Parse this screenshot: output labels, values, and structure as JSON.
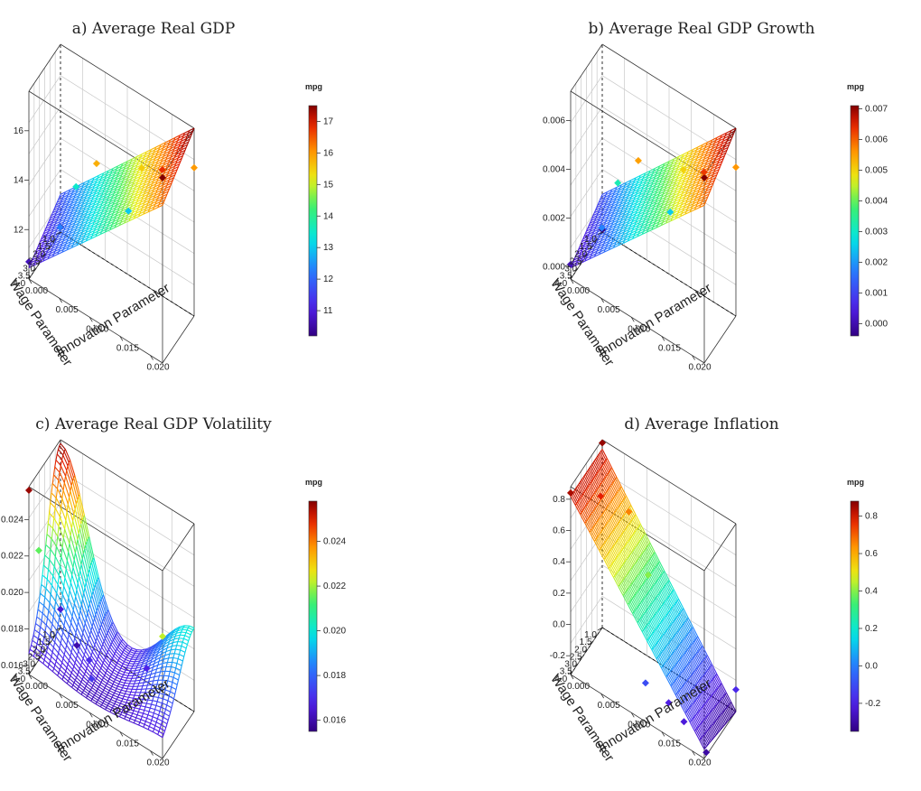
{
  "panels": {
    "a": {
      "title": "a) Average Real GDP"
    },
    "b": {
      "title": "b) Average Real GDP Growth"
    },
    "c": {
      "title": "c) Average Real GDP Volatility"
    },
    "d": {
      "title": "d) Average Inflation"
    }
  },
  "chart_data": [
    {
      "type": "surface",
      "title": "a) Average Real GDP",
      "xlabel": "Innovation Parameter",
      "ylabel": "Wage Parameter",
      "x_ticks": [
        "0.000",
        "0.005",
        "0.010",
        "0.015",
        "0.020"
      ],
      "y_ticks": [
        "1.0",
        "1.5",
        "2.0",
        "2.5",
        "3.0",
        "3.5",
        "4.0"
      ],
      "z_ticks": [
        "12",
        "14",
        "16"
      ],
      "xlim": [
        0,
        0.022
      ],
      "ylim": [
        1,
        4.2
      ],
      "zlim": [
        10.0,
        17.6
      ],
      "colorbar_title": "mpg",
      "colorbar_ticks": [
        "11",
        "12",
        "13",
        "14",
        "15",
        "16",
        "17"
      ],
      "colorbar_range": [
        10.2,
        17.5
      ],
      "points": [
        {
          "x": 0.0,
          "y": 1.0,
          "z": 10.2
        },
        {
          "x": 0.0,
          "y": 4.2,
          "z": 10.7
        },
        {
          "x": 0.022,
          "y": 4.2,
          "z": 17.5
        },
        {
          "x": 0.022,
          "y": 1.0,
          "z": 16.0
        },
        {
          "x": 0.005,
          "y": 2.5,
          "z": 13.5
        },
        {
          "x": 0.01,
          "y": 3.5,
          "z": 15.8
        },
        {
          "x": 0.015,
          "y": 2.0,
          "z": 15.5
        },
        {
          "x": 0.02,
          "y": 3.0,
          "z": 16.8
        },
        {
          "x": 0.012,
          "y": 1.5,
          "z": 13.0
        },
        {
          "x": 0.004,
          "y": 3.5,
          "z": 12.3
        }
      ]
    },
    {
      "type": "surface",
      "title": "b) Average Real GDP Growth",
      "xlabel": "Innovation Parameter",
      "ylabel": "Wage Parameter",
      "x_ticks": [
        "0.000",
        "0.005",
        "0.010",
        "0.015",
        "0.020"
      ],
      "y_ticks": [
        "1.0",
        "1.5",
        "2.0",
        "2.5",
        "3.0",
        "3.5",
        "4.0"
      ],
      "z_ticks": [
        "0.000",
        "0.002",
        "0.004",
        "0.006"
      ],
      "xlim": [
        0,
        0.022
      ],
      "ylim": [
        1,
        4.2
      ],
      "zlim": [
        -0.0005,
        0.0072
      ],
      "colorbar_title": "mpg",
      "colorbar_ticks": [
        "0.000",
        "0.001",
        "0.002",
        "0.003",
        "0.004",
        "0.005",
        "0.006",
        "0.007"
      ],
      "colorbar_range": [
        -0.0004,
        0.0071
      ],
      "points": [
        {
          "x": 0.0,
          "y": 1.0,
          "z": -0.0004
        },
        {
          "x": 0.0,
          "y": 4.2,
          "z": 0.0001
        },
        {
          "x": 0.022,
          "y": 4.2,
          "z": 0.0071
        },
        {
          "x": 0.022,
          "y": 1.0,
          "z": 0.0056
        },
        {
          "x": 0.005,
          "y": 2.5,
          "z": 0.0032
        },
        {
          "x": 0.01,
          "y": 3.5,
          "z": 0.0055
        },
        {
          "x": 0.015,
          "y": 2.0,
          "z": 0.005
        },
        {
          "x": 0.02,
          "y": 3.0,
          "z": 0.0063
        },
        {
          "x": 0.012,
          "y": 1.5,
          "z": 0.0025
        },
        {
          "x": 0.004,
          "y": 3.5,
          "z": 0.0018
        }
      ]
    },
    {
      "type": "surface",
      "title": "c) Average Real GDP Volatility",
      "xlabel": "Innovation Parameter",
      "ylabel": "Wage Parameter",
      "x_ticks": [
        "0.000",
        "0.005",
        "0.010",
        "0.015",
        "0.020"
      ],
      "y_ticks": [
        "1.0",
        "1.5",
        "2.0",
        "2.5",
        "3.0",
        "3.5",
        "4.0"
      ],
      "z_ticks": [
        "0.016",
        "0.018",
        "0.020",
        "0.022",
        "0.024"
      ],
      "xlim": [
        0,
        0.022
      ],
      "ylim": [
        1,
        4.2
      ],
      "zlim": [
        0.0155,
        0.0258
      ],
      "colorbar_title": "mpg",
      "colorbar_ticks": [
        "0.016",
        "0.018",
        "0.020",
        "0.022",
        "0.024"
      ],
      "colorbar_range": [
        0.0155,
        0.0258
      ],
      "points": [
        {
          "x": 0.0,
          "y": 4.2,
          "z": 0.0256
        },
        {
          "x": 0.0,
          "y": 3.2,
          "z": 0.0215
        },
        {
          "x": 0.022,
          "y": 4.2,
          "z": 0.0222
        },
        {
          "x": 0.004,
          "y": 1.8,
          "z": 0.016
        },
        {
          "x": 0.008,
          "y": 3.0,
          "z": 0.017
        },
        {
          "x": 0.0,
          "y": 1.0,
          "z": 0.0165
        },
        {
          "x": 0.015,
          "y": 1.5,
          "z": 0.0168
        },
        {
          "x": 0.01,
          "y": 4.0,
          "z": 0.0172
        }
      ]
    },
    {
      "type": "surface",
      "title": "d) Average Inflation",
      "xlabel": "Innovation Parameter",
      "ylabel": "Wage Parameter",
      "x_ticks": [
        "0.000",
        "0.005",
        "0.010",
        "0.015",
        "0.020"
      ],
      "y_ticks": [
        "1.0",
        "1.5",
        "2.0",
        "2.5",
        "3.0",
        "3.5",
        "4.0"
      ],
      "z_ticks": [
        "-0.2",
        "0.0",
        "0.2",
        "0.4",
        "0.6",
        "0.8"
      ],
      "xlim": [
        0,
        0.022
      ],
      "ylim": [
        1,
        4.2
      ],
      "zlim": [
        -0.32,
        0.88
      ],
      "colorbar_title": "mpg",
      "colorbar_ticks": [
        "-0.2",
        "0.0",
        "0.2",
        "0.4",
        "0.6",
        "0.8"
      ],
      "colorbar_range": [
        -0.35,
        0.88
      ],
      "points": [
        {
          "x": 0.0,
          "y": 4.2,
          "z": 0.84
        },
        {
          "x": 0.0,
          "y": 1.0,
          "z": 0.86
        },
        {
          "x": 0.003,
          "y": 3.0,
          "z": 0.78
        },
        {
          "x": 0.006,
          "y": 2.0,
          "z": 0.66
        },
        {
          "x": 0.01,
          "y": 2.5,
          "z": 0.4
        },
        {
          "x": 0.022,
          "y": 4.0,
          "z": -0.3
        },
        {
          "x": 0.022,
          "y": 1.0,
          "z": -0.18
        },
        {
          "x": 0.015,
          "y": 3.5,
          "z": -0.2
        },
        {
          "x": 0.018,
          "y": 3.8,
          "z": -0.22
        },
        {
          "x": 0.012,
          "y": 4.0,
          "z": -0.1
        }
      ]
    }
  ]
}
